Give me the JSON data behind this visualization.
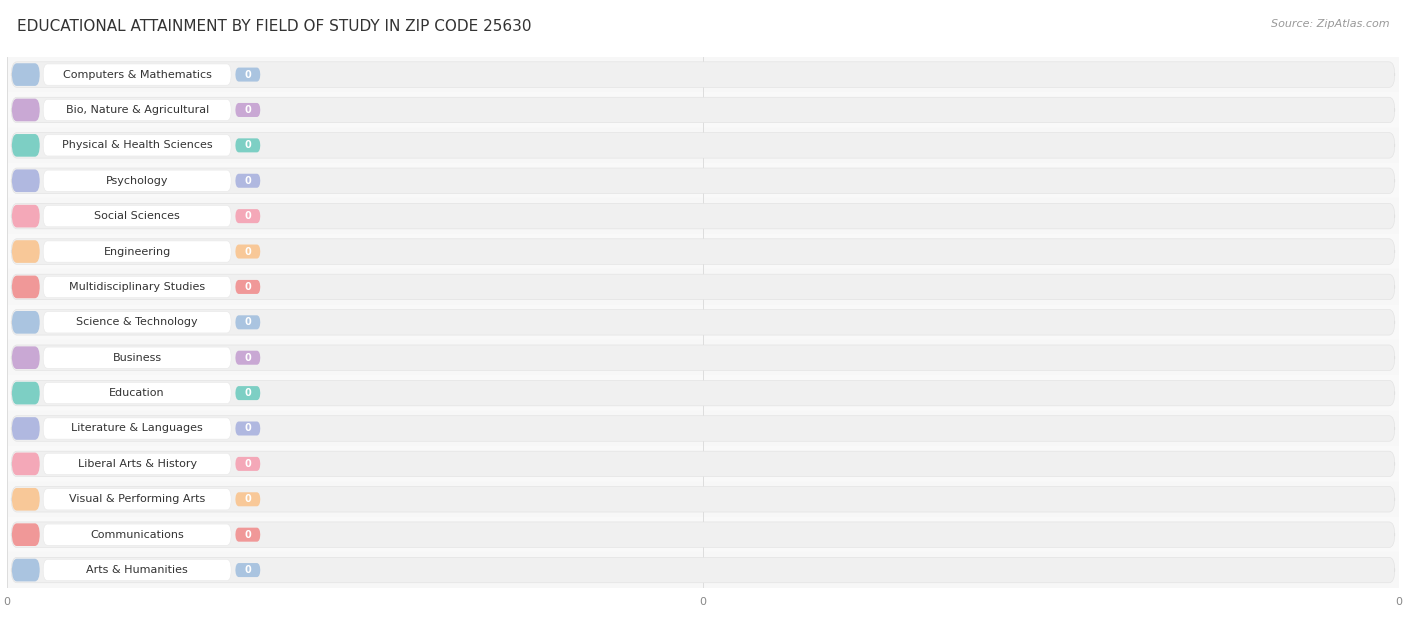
{
  "title": "EDUCATIONAL ATTAINMENT BY FIELD OF STUDY IN ZIP CODE 25630",
  "source": "Source: ZipAtlas.com",
  "categories": [
    "Computers & Mathematics",
    "Bio, Nature & Agricultural",
    "Physical & Health Sciences",
    "Psychology",
    "Social Sciences",
    "Engineering",
    "Multidisciplinary Studies",
    "Science & Technology",
    "Business",
    "Education",
    "Literature & Languages",
    "Liberal Arts & History",
    "Visual & Performing Arts",
    "Communications",
    "Arts & Humanities"
  ],
  "values": [
    0,
    0,
    0,
    0,
    0,
    0,
    0,
    0,
    0,
    0,
    0,
    0,
    0,
    0,
    0
  ],
  "bar_colors": [
    "#aac4e0",
    "#c9a8d4",
    "#7dcfc4",
    "#b0b8e0",
    "#f4a8b8",
    "#f8c898",
    "#f09898",
    "#aac4e0",
    "#c9a8d4",
    "#7dcfc4",
    "#b0b8e0",
    "#f4a8b8",
    "#f8c898",
    "#f09898",
    "#aac4e0"
  ],
  "title_fontsize": 11,
  "source_fontsize": 8,
  "label_fontsize": 8,
  "value_fontsize": 7
}
